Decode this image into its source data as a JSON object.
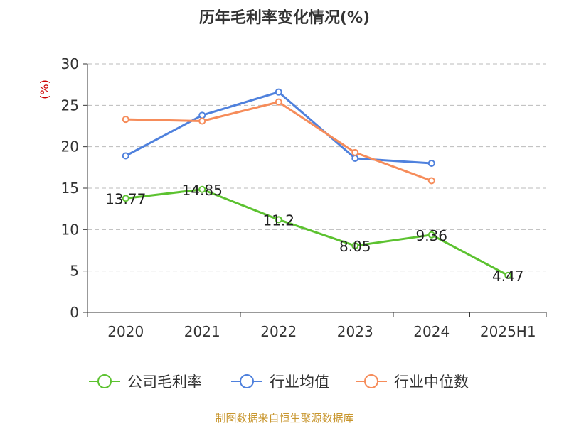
{
  "chart_data": {
    "type": "line",
    "title": "历年毛利率变化情况(%)",
    "ylabel": "(%)",
    "xlabel": "",
    "categories": [
      "2020",
      "2021",
      "2022",
      "2023",
      "2024",
      "2025H1"
    ],
    "ylim": [
      0,
      30
    ],
    "yticks": [
      0,
      5,
      10,
      15,
      20,
      25,
      30
    ],
    "grid": true,
    "legend_position": "bottom",
    "series": [
      {
        "name": "公司毛利率",
        "color": "#5cc230",
        "values": [
          13.77,
          14.85,
          11.2,
          8.05,
          9.36,
          4.47
        ],
        "labels": [
          "13.77",
          "14.85",
          "11.2",
          "8.05",
          "9.36",
          "4.47"
        ]
      },
      {
        "name": "行业均值",
        "color": "#4f81dd",
        "values": [
          18.9,
          23.8,
          26.6,
          18.6,
          18.0,
          null
        ]
      },
      {
        "name": "行业中位数",
        "color": "#f68c5a",
        "values": [
          23.3,
          23.1,
          25.4,
          19.3,
          15.9,
          null
        ]
      }
    ]
  },
  "source": "制图数据来自恒生聚源数据库"
}
